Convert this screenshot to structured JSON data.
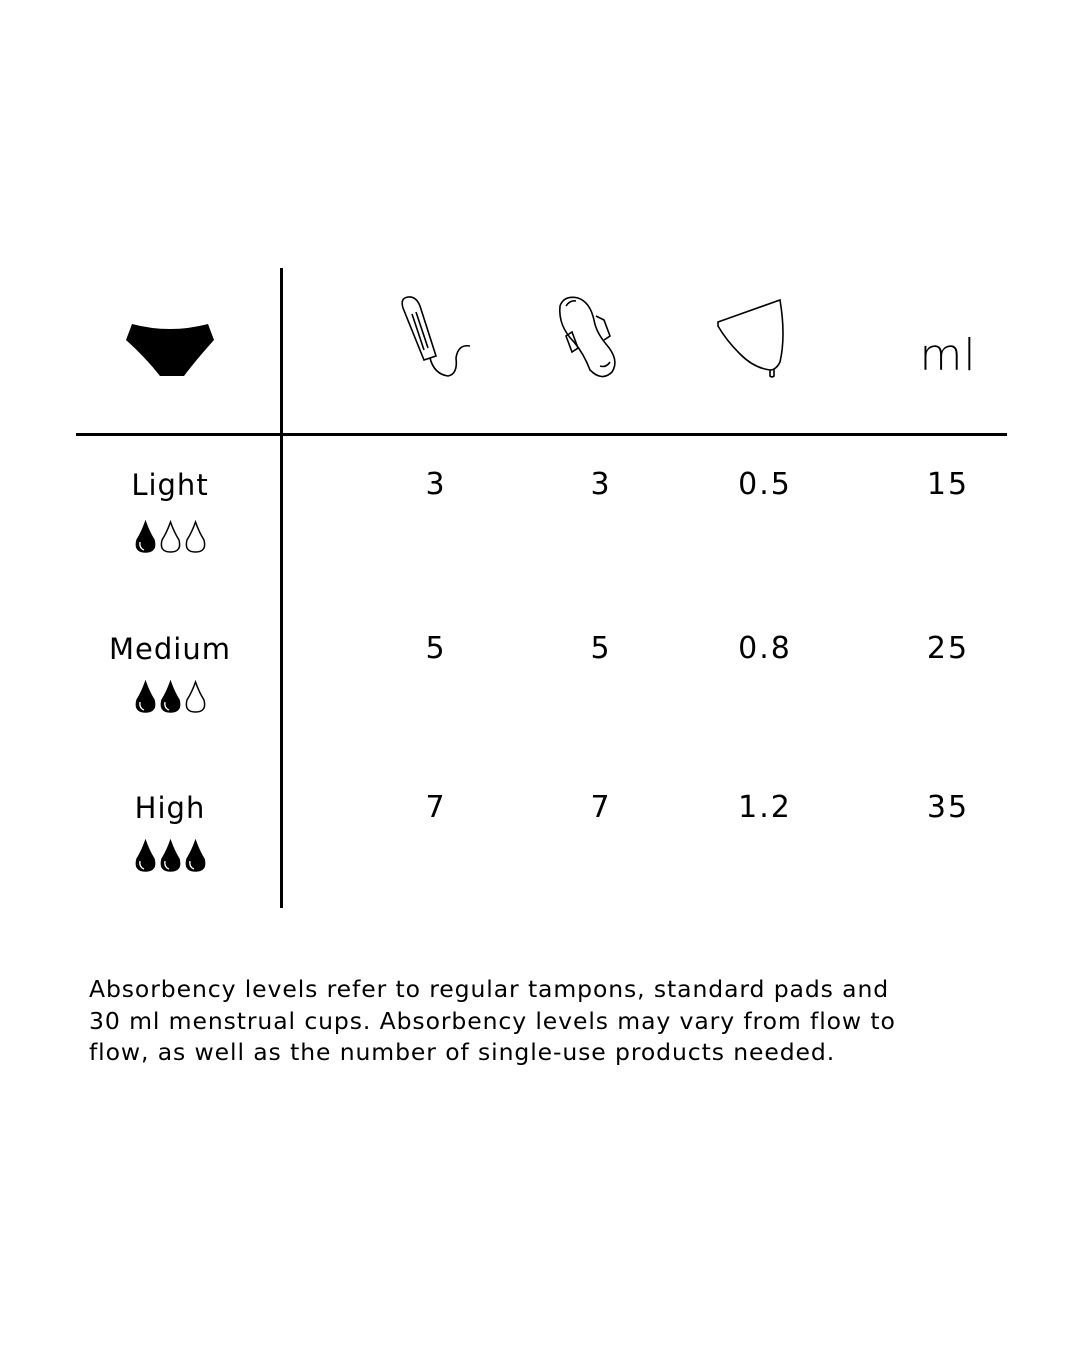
{
  "header": {
    "icons": [
      "underwear-icon",
      "tampon-icon",
      "pad-icon",
      "menstrual-cup-icon"
    ],
    "unit_label": "ml"
  },
  "rows": [
    {
      "label": "Light",
      "drops_filled": 1,
      "drops_total": 3,
      "tampons": "3",
      "pads": "3",
      "cups": "0.5",
      "ml": "15"
    },
    {
      "label": "Medium",
      "drops_filled": 2,
      "drops_total": 3,
      "tampons": "5",
      "pads": "5",
      "cups": "0.8",
      "ml": "25"
    },
    {
      "label": "High",
      "drops_filled": 3,
      "drops_total": 3,
      "tampons": "7",
      "pads": "7",
      "cups": "1.2",
      "ml": "35"
    }
  ],
  "footnote": {
    "lines": [
      "Absorbency levels refer to regular tampons, standard pads and",
      "30 ml menstrual cups. Absorbency levels may vary from flow to",
      "flow, as well as the number of single-use products needed."
    ]
  },
  "colors": {
    "ink": "#000000",
    "background": "#ffffff"
  }
}
